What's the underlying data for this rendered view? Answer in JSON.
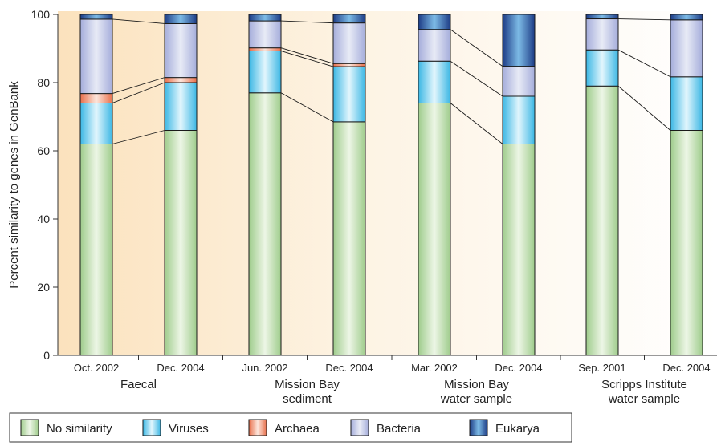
{
  "chart_data": {
    "type": "bar",
    "stacked": true,
    "ylabel": "Percent similarity to genes in GenBank",
    "ylim": [
      0,
      100
    ],
    "yticks": [
      0,
      20,
      40,
      60,
      80,
      100
    ],
    "grid": false,
    "legend_position": "bottom-left",
    "categories": [
      "Oct. 2002",
      "Dec. 2004",
      "Jun. 2002",
      "Dec. 2004",
      "Mar. 2002",
      "Dec. 2004",
      "Sep. 2001",
      "Dec. 2004"
    ],
    "groups": [
      {
        "label": "Faecal",
        "members": [
          0,
          1
        ]
      },
      {
        "label": "Mission Bay\nsediment",
        "members": [
          2,
          3
        ]
      },
      {
        "label": "Mission Bay\nwater sample",
        "members": [
          4,
          5
        ]
      },
      {
        "label": "Scripps Institute\nwater sample",
        "members": [
          6,
          7
        ]
      }
    ],
    "series": [
      {
        "name": "No similarity",
        "color_light": "#edf6e6",
        "color_dark": "#9fcc8c",
        "values": [
          62,
          66,
          77,
          68.5,
          74,
          62,
          79,
          66
        ]
      },
      {
        "name": "Viruses",
        "color_light": "#e2f6fd",
        "color_dark": "#3cb7e4",
        "values": [
          12,
          14,
          12.3,
          16.2,
          12.3,
          14,
          10.6,
          15.7
        ]
      },
      {
        "name": "Archaea",
        "color_light": "#fde6dc",
        "color_dark": "#e8704c",
        "values": [
          2.8,
          1.5,
          0.9,
          0.9,
          0,
          0,
          0,
          0
        ]
      },
      {
        "name": "Bacteria",
        "color_light": "#e8ebf6",
        "color_dark": "#a5addb",
        "values": [
          21.8,
          15.8,
          7.9,
          11.9,
          9.3,
          8.8,
          9.1,
          16.7
        ]
      },
      {
        "name": "Eukarya",
        "color_light": "#7dbbe6",
        "color_dark": "#1d3c86",
        "values": [
          1.4,
          2.7,
          1.9,
          2.5,
          4.4,
          15.2,
          1.3,
          1.6
        ]
      }
    ]
  }
}
